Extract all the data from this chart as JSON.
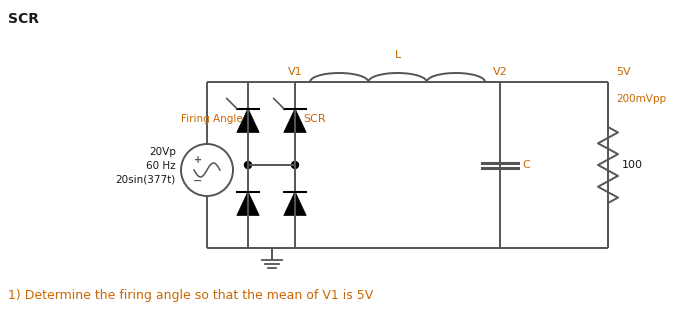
{
  "title": "SCR",
  "bg_color": "#ffffff",
  "text_color": "#1a1a1a",
  "orange_color": "#cc6600",
  "circuit_color": "#555555",
  "question_text": "1) Determine the firing angle so that the mean of V1 is 5V",
  "source_label_lines": [
    "20Vp",
    "60 Hz",
    "20sin(377t)"
  ],
  "firing_angle_label": "Firing Angle",
  "scr_label": "SCR",
  "v1_label": "V1",
  "v2_label": "V2",
  "l_label": "L",
  "c_label": "C",
  "r_label": "100",
  "v_label": "5V",
  "ripple_label": "200mVpp",
  "fig_w": 6.73,
  "fig_h": 3.15,
  "dpi": 100
}
